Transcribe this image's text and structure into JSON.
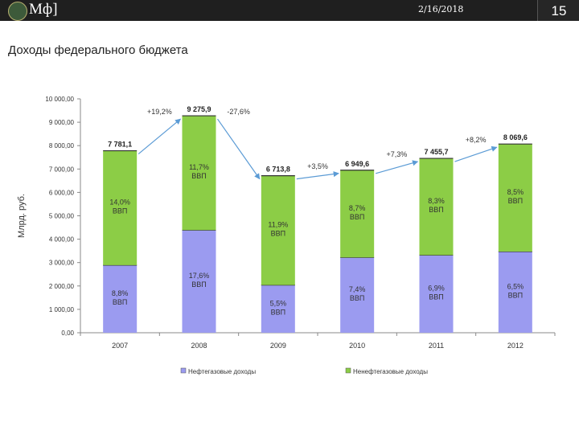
{
  "header": {
    "logo_text": "Мф]",
    "date": "2/16/2018",
    "page_number": "15"
  },
  "slide": {
    "title": "Доходы федерального бюджета"
  },
  "chart_data": {
    "type": "bar",
    "stacked": true,
    "categories": [
      "2007",
      "2008",
      "2009",
      "2010",
      "2011",
      "2012"
    ],
    "ylabel": "Млрд. руб.",
    "ylim": [
      0,
      10000
    ],
    "y_ticks": [
      "10 000,00",
      "9 000,00",
      "8 000,00",
      "7 000,00",
      "6 000,00",
      "5 000,00",
      "4 000,00",
      "3 000,00",
      "2 000,00",
      "1 000,00",
      "0,00"
    ],
    "y_tick_values": [
      10000,
      9000,
      8000,
      7000,
      6000,
      5000,
      4000,
      3000,
      2000,
      1000,
      0
    ],
    "totals": [
      7781.1,
      9275.9,
      6713.8,
      6949.6,
      7455.7,
      8069.6
    ],
    "total_labels": [
      "7 781,1",
      "9 275,9",
      "6 713,8",
      "6 949,6",
      "7 455,7",
      "8 069,6"
    ],
    "series": [
      {
        "name": "Нефтегазовые доходы",
        "color": "#9b9bf0",
        "values": [
          2890,
          4390,
          2040,
          3220,
          3320,
          3470
        ],
        "labels": [
          "8,8%\nВВП",
          "17,6%\nВВП",
          "5,5%\nВВП",
          "7,4%\nВВП",
          "6,9%\nВВП",
          "6,5%\nВВП"
        ]
      },
      {
        "name": "Ненефтегазовые доходы",
        "color": "#8ccd46",
        "values": [
          4891.1,
          4885.9,
          4673.8,
          3729.6,
          4135.7,
          4599.6
        ],
        "labels": [
          "14,0%\nВВП",
          "11,7%\nВВП",
          "11,9%\nВВП",
          "8,7%\nВВП",
          "8,3%\nВВП",
          "8,5%\nВВП"
        ]
      }
    ],
    "changes": [
      "+19,2%",
      "-27,6%",
      "+3,5%",
      "+7,3%",
      "+8,2%"
    ],
    "legend_position": "bottom"
  }
}
